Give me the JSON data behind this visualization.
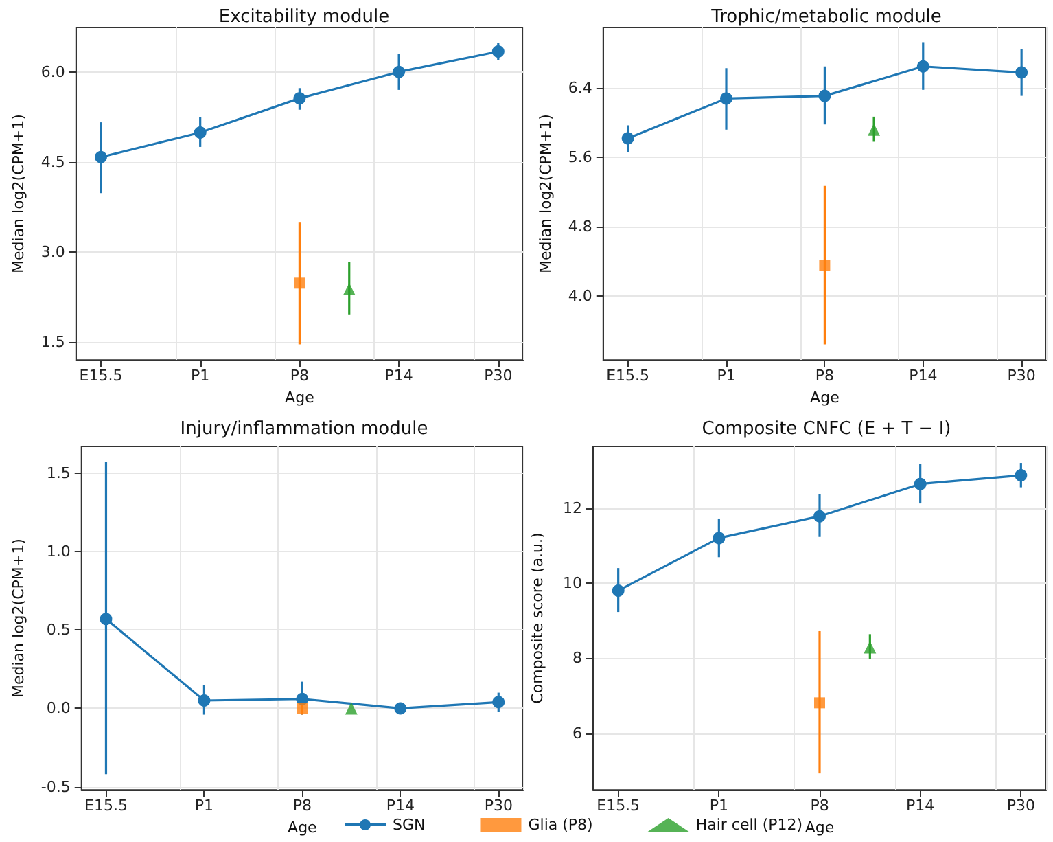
{
  "chart_data": [
    {
      "type": "line",
      "title": "Excitability module",
      "xlabel": "Age",
      "ylabel": "Median log2(CPM+1)",
      "categories": [
        "E15.5",
        null,
        "P1",
        null,
        "P8",
        null,
        "P14",
        null,
        "P30"
      ],
      "ylim": [
        1.2,
        6.74
      ],
      "yticks": [
        1.5,
        {
          "value": 3,
          "label": "3.0"
        },
        4.5,
        {
          "value": 6,
          "label": "6.0"
        }
      ],
      "grid": true,
      "series": [
        {
          "x": [
            "E15.5",
            "P1",
            "P8",
            "P14",
            "P30"
          ],
          "color": "#1f77b4",
          "marker": "circle",
          "line_style": "solid",
          "values": [
            4.58,
            4.99,
            5.56,
            6.0,
            6.34
          ],
          "errors": [
            [
              3.98,
              5.16
            ],
            [
              4.75,
              5.25
            ],
            [
              5.37,
              5.73
            ],
            [
              5.7,
              6.3
            ],
            [
              6.2,
              6.48
            ]
          ]
        },
        {
          "type": "scatter",
          "x": [
            "P8"
          ],
          "color": "#ff7f0e",
          "marker": "square",
          "values": [
            2.48
          ],
          "errors": [
            [
              1.46,
              3.5
            ]
          ]
        },
        {
          "type": "scatter",
          "color": "#2ca02c",
          "marker": "triangle",
          "values": [
            null,
            null,
            null,
            null,
            null,
            2.38,
            null,
            null,
            null
          ],
          "errors": [
            null,
            null,
            null,
            null,
            null,
            [
              1.96,
              2.83
            ],
            null,
            null,
            null
          ]
        }
      ]
    },
    {
      "type": "line",
      "title": "Trophic/metabolic module",
      "xlabel": "Age",
      "ylabel": "Median log2(CPM+1)",
      "categories": [
        "E15.5",
        null,
        "P1",
        null,
        "P8",
        null,
        "P14",
        null,
        "P30"
      ],
      "ylim": [
        3.26,
        7.1
      ],
      "yticks": [
        {
          "value": 4,
          "label": "4.0"
        },
        4.8,
        5.6,
        6.4
      ],
      "grid": true,
      "series": [
        {
          "x": [
            "E15.5",
            "P1",
            "P8",
            "P14",
            "P30"
          ],
          "color": "#1f77b4",
          "marker": "circle",
          "line_style": "solid",
          "values": [
            5.82,
            6.28,
            6.31,
            6.65,
            6.58
          ],
          "errors": [
            [
              5.66,
              5.97
            ],
            [
              5.92,
              6.63
            ],
            [
              5.98,
              6.65
            ],
            [
              6.38,
              6.93
            ],
            [
              6.31,
              6.85
            ]
          ]
        },
        {
          "type": "scatter",
          "x": [
            "P8"
          ],
          "color": "#ff7f0e",
          "marker": "square",
          "values": [
            4.35
          ],
          "errors": [
            [
              3.44,
              5.27
            ]
          ]
        },
        {
          "type": "scatter",
          "color": "#2ca02c",
          "marker": "triangle",
          "values": [
            null,
            null,
            null,
            null,
            null,
            5.92,
            null,
            null,
            null
          ],
          "errors": [
            null,
            null,
            null,
            null,
            null,
            [
              5.78,
              6.07
            ],
            null,
            null,
            null
          ]
        }
      ]
    },
    {
      "type": "line",
      "title": "Injury/inflammation module",
      "xlabel": "Age",
      "ylabel": "Median log2(CPM+1)",
      "categories": [
        "E15.5",
        null,
        "P1",
        null,
        "P8",
        null,
        "P14",
        null,
        "P30"
      ],
      "ylim": [
        -0.52,
        1.67
      ],
      "yticks": [
        -0.5,
        {
          "value": 0,
          "label": "0.0"
        },
        0.5,
        {
          "value": 1,
          "label": "1.0"
        },
        1.5
      ],
      "grid": true,
      "series": [
        {
          "x": [
            "E15.5",
            "P1",
            "P8",
            "P14",
            "P30"
          ],
          "color": "#1f77b4",
          "marker": "circle",
          "line_style": "solid",
          "values": [
            0.57,
            0.05,
            0.06,
            0.0,
            0.04
          ],
          "errors": [
            [
              -0.42,
              1.57
            ],
            [
              -0.04,
              0.15
            ],
            [
              -0.04,
              0.17
            ],
            null,
            [
              -0.02,
              0.1
            ]
          ]
        },
        {
          "type": "scatter",
          "x": [
            "P8"
          ],
          "color": "#ff7f0e",
          "marker": "square",
          "values": [
            0.0
          ],
          "errors": [
            [
              -0.04,
              0.03
            ]
          ]
        },
        {
          "type": "scatter",
          "color": "#2ca02c",
          "marker": "triangle",
          "values": [
            null,
            null,
            null,
            null,
            null,
            0.0,
            null,
            null,
            null
          ]
        }
      ]
    },
    {
      "type": "line",
      "title": "Composite CNFC (E + T − I)",
      "xlabel": "Age",
      "ylabel": "Composite score (a.u.)",
      "categories": [
        "E15.5",
        null,
        "P1",
        null,
        "P8",
        null,
        "P14",
        null,
        "P30"
      ],
      "ylim": [
        4.49,
        13.64
      ],
      "yticks": [
        6,
        8,
        10,
        12
      ],
      "grid": true,
      "legend": "bottom",
      "series": [
        {
          "name": "SGN",
          "x": [
            "E15.5",
            "P1",
            "P8",
            "P14",
            "P30"
          ],
          "color": "#1f77b4",
          "marker": "circle",
          "line_style": "solid",
          "values": [
            9.8,
            11.2,
            11.78,
            12.64,
            12.87
          ],
          "errors": [
            [
              9.23,
              10.4
            ],
            [
              10.69,
              11.72
            ],
            [
              11.23,
              12.36
            ],
            [
              12.12,
              13.17
            ],
            [
              12.55,
              13.2
            ]
          ]
        },
        {
          "type": "scatter",
          "name": "Glia (P8)",
          "x": [
            "P8"
          ],
          "color": "#ff7f0e",
          "marker": "square",
          "values": [
            6.81
          ],
          "errors": [
            [
              4.93,
              8.72
            ]
          ]
        },
        {
          "type": "scatter",
          "name": "Hair cell (P12)",
          "color": "#2ca02c",
          "marker": "triangle",
          "values": [
            null,
            null,
            null,
            null,
            null,
            8.29,
            null,
            null,
            null
          ],
          "errors": [
            null,
            null,
            null,
            null,
            null,
            [
              7.98,
              8.64
            ],
            null,
            null,
            null
          ]
        }
      ]
    }
  ]
}
